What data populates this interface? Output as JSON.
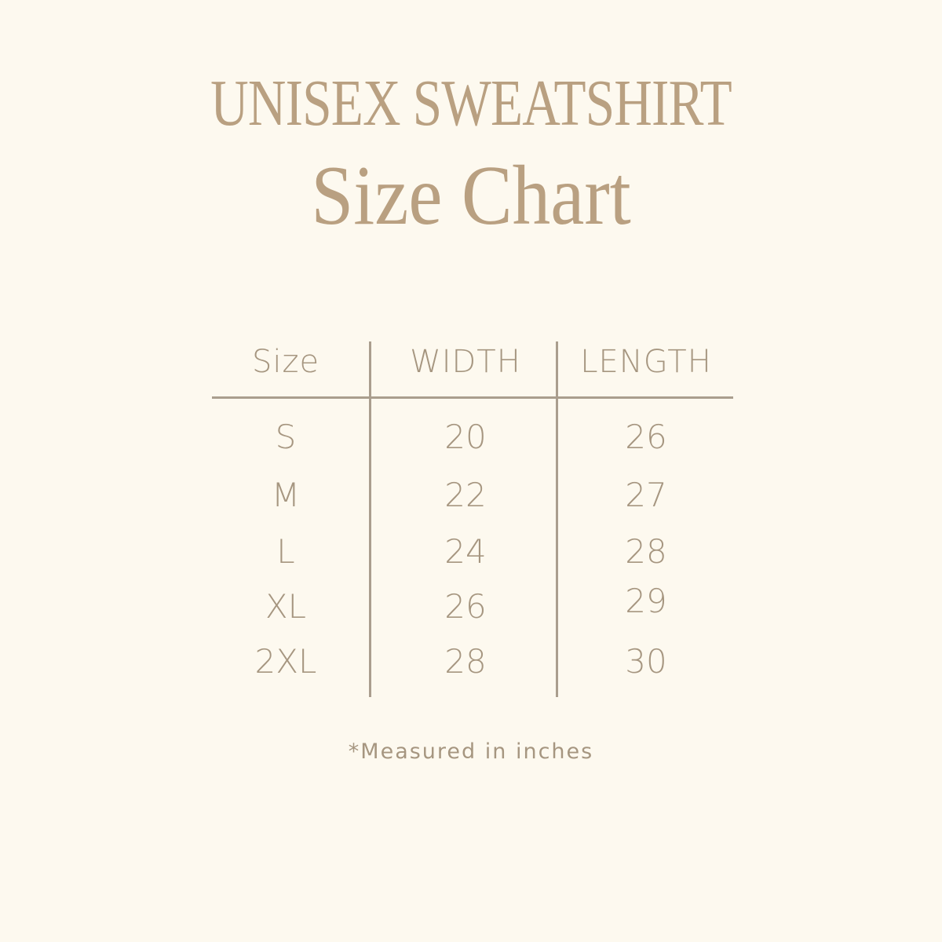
{
  "title": {
    "line1": "UNISEX SWEATSHIRT",
    "line2": "Size Chart"
  },
  "table": {
    "headers": [
      "Size",
      "WIDTH",
      "LENGTH"
    ],
    "rows": [
      [
        "S",
        "20",
        "26"
      ],
      [
        "M",
        "22",
        "27"
      ],
      [
        "L",
        "24",
        "28"
      ],
      [
        "XL",
        "26",
        "29"
      ],
      [
        "2XL",
        "28",
        "30"
      ]
    ]
  },
  "footnote": "*Measured in inches",
  "colors": {
    "background": "#fdf9ef",
    "title": "#b9a081",
    "text": "#a69680",
    "lines": "#aa9e8e"
  }
}
